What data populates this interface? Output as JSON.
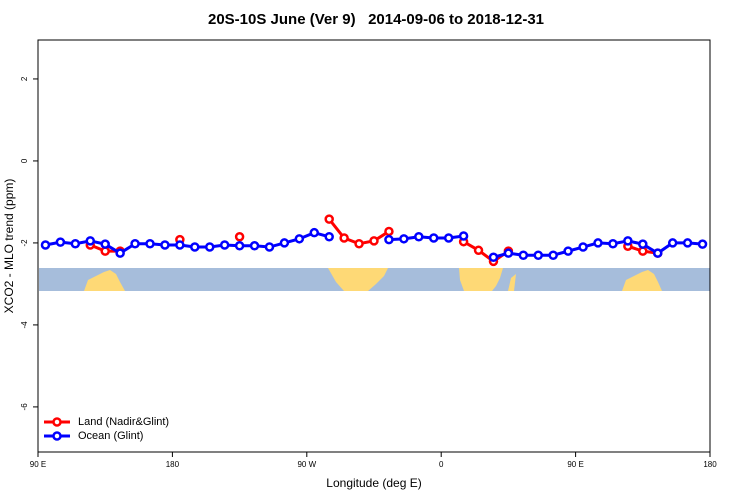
{
  "chart_data": {
    "type": "line",
    "title": "20S-10S June (Ver 9)   2014-09-06 to 2018-12-31",
    "x_label": "Longitude (deg E)",
    "y_label": "XCO2 - MLO trend (ppm)",
    "xlim": [
      90,
      540
    ],
    "xticks": [
      {
        "value": 90,
        "label": "90 E"
      },
      180,
      {
        "value": 270,
        "label": "90 W"
      },
      {
        "value": 360,
        "label": "0"
      },
      {
        "value": 450,
        "label": "90 E"
      },
      {
        "value": 540,
        "label": "180"
      }
    ],
    "ylim": [
      -7.1,
      2.95
    ],
    "yticks": [
      -6,
      -4,
      -2,
      0,
      2
    ],
    "legend": "bottom-left",
    "x": [
      95,
      105,
      115,
      125,
      135,
      145,
      155,
      165,
      175,
      185,
      195,
      205,
      215,
      225,
      235,
      245,
      255,
      265,
      275,
      285,
      295,
      305,
      315,
      325,
      335,
      345,
      355,
      365,
      375,
      385,
      395,
      405,
      415,
      425,
      435,
      445,
      455,
      465,
      475,
      485,
      495,
      505,
      515,
      525,
      535
    ],
    "series": [
      {
        "name": "Land (Nadir&Glint)",
        "color": "#ff0000",
        "values": [
          null,
          null,
          null,
          -2.05,
          -2.2,
          -2.2,
          null,
          null,
          null,
          -1.92,
          null,
          null,
          null,
          -1.85,
          null,
          null,
          null,
          null,
          null,
          -1.42,
          -1.88,
          -2.02,
          -1.95,
          -1.72,
          null,
          null,
          null,
          null,
          -1.97,
          -2.18,
          -2.45,
          -2.2,
          null,
          null,
          null,
          null,
          null,
          null,
          null,
          -2.08,
          -2.2,
          -2.25,
          null,
          null,
          null
        ]
      },
      {
        "name": "Ocean (Glint)",
        "color": "#0000ff",
        "values": [
          -2.05,
          -1.98,
          -2.02,
          -1.95,
          -2.03,
          -2.25,
          -2.02,
          -2.02,
          -2.05,
          -2.05,
          -2.1,
          -2.1,
          -2.05,
          -2.07,
          -2.07,
          -2.1,
          -2.0,
          -1.9,
          -1.75,
          -1.85,
          null,
          null,
          null,
          -1.92,
          -1.9,
          -1.85,
          -1.88,
          -1.88,
          -1.83,
          null,
          -2.35,
          -2.25,
          -2.3,
          -2.3,
          -2.3,
          -2.2,
          -2.1,
          -2.0,
          -2.02,
          -1.95,
          -2.03,
          -2.25,
          -2.0,
          -2.0,
          -2.03
        ]
      }
    ]
  }
}
